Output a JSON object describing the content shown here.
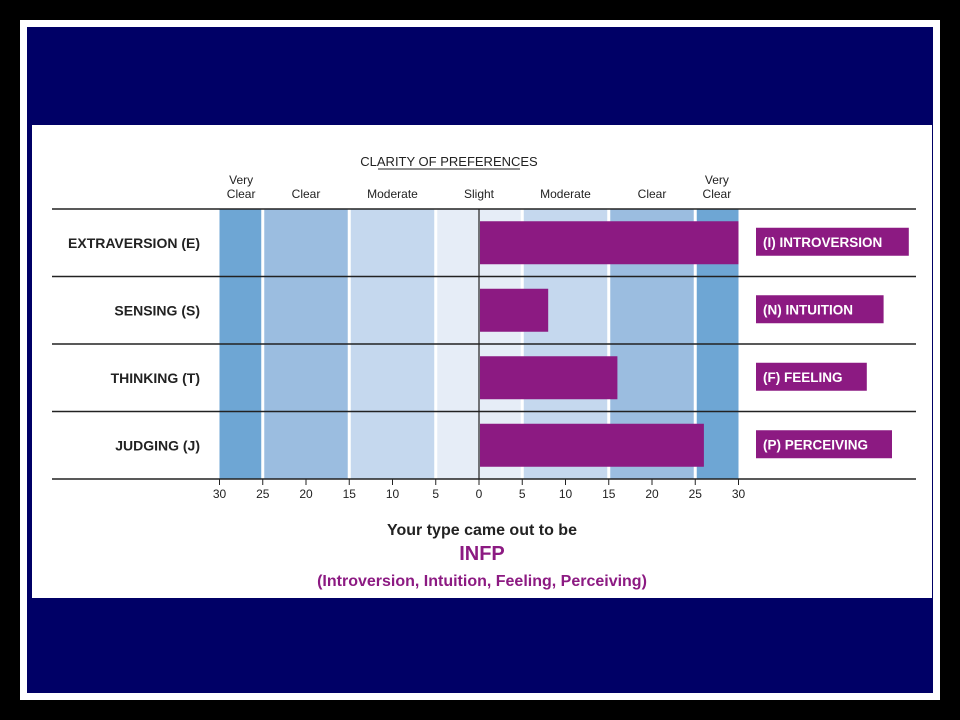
{
  "colors": {
    "slide_bg": "#000066",
    "bar": "#8c1a82",
    "band_very_clear": "#6ea6d4",
    "band_clear": "#9bbde0",
    "band_moderate": "#c5d8ee",
    "band_slight": "#e6edf7"
  },
  "chart_data": {
    "type": "bar",
    "title": "CLARITY OF PREFERENCES",
    "clarity_bands": [
      {
        "label": "Very Clear",
        "from": 25,
        "to": 30,
        "side": "left"
      },
      {
        "label": "Clear",
        "from": 15,
        "to": 25,
        "side": "left"
      },
      {
        "label": "Moderate",
        "from": 5,
        "to": 15,
        "side": "left"
      },
      {
        "label": "Slight",
        "from": 0,
        "to": 5,
        "side": "center"
      },
      {
        "label": "Moderate",
        "from": 5,
        "to": 15,
        "side": "right"
      },
      {
        "label": "Clear",
        "from": 15,
        "to": 25,
        "side": "right"
      },
      {
        "label": "Very Clear",
        "from": 25,
        "to": 30,
        "side": "right"
      }
    ],
    "x_ticks_left": [
      "30",
      "25",
      "20",
      "15",
      "10",
      "5"
    ],
    "x_ticks_right": [
      "0",
      "5",
      "10",
      "15",
      "20",
      "25",
      "30"
    ],
    "xlim": [
      -30,
      30
    ],
    "rows": [
      {
        "left_label": "EXTRAVERSION  (E)",
        "right_label": "(I)  INTROVERSION",
        "value": 30
      },
      {
        "left_label": "SENSING  (S)",
        "right_label": "(N)  INTUITION",
        "value": 8
      },
      {
        "left_label": "THINKING  (T)",
        "right_label": "(F)  FEELING",
        "value": 16
      },
      {
        "left_label": "JUDGING  (J)",
        "right_label": "(P)  PERCEIVING",
        "value": 26
      }
    ]
  },
  "result": {
    "intro": "Your type came out to be",
    "type_code": "INFP",
    "description": "(Introversion, Intuition, Feeling, Perceiving)"
  }
}
